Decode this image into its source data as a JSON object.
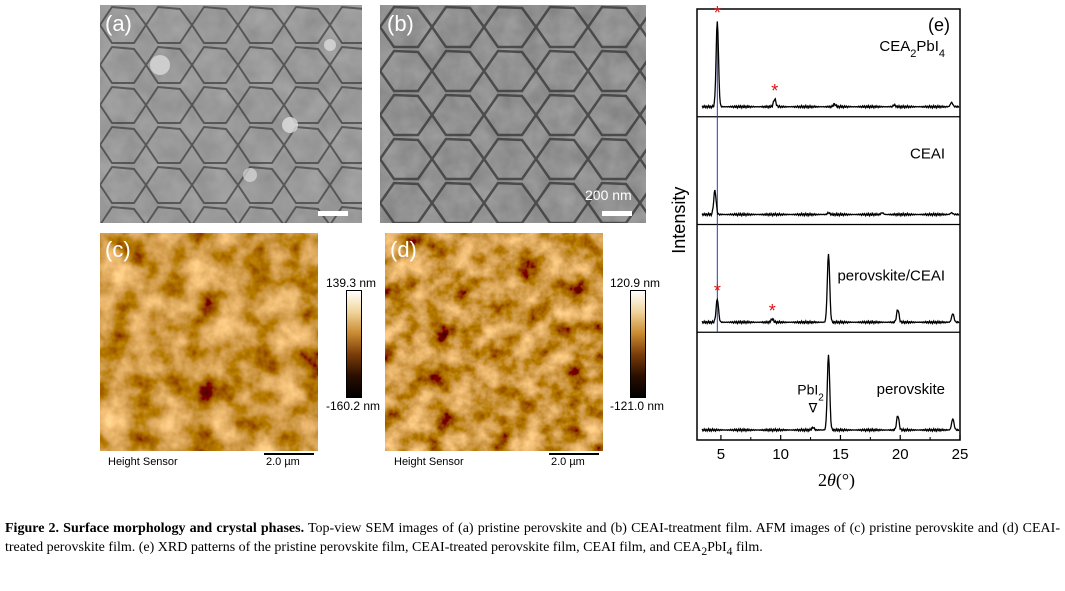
{
  "panels": {
    "a": {
      "label": "(a)"
    },
    "b": {
      "label": "(b)",
      "scalebar_text": "200 nm"
    },
    "c": {
      "label": "(c)",
      "colorbar_max": "139.3 nm",
      "colorbar_min": "-160.2 nm",
      "sensor": "Height Sensor",
      "scalebar_text": "2.0 µm"
    },
    "d": {
      "label": "(d)",
      "colorbar_max": "120.9 nm",
      "colorbar_min": "-121.0 nm",
      "sensor": "Height Sensor",
      "scalebar_text": "2.0 µm"
    }
  },
  "chart_data": {
    "type": "line",
    "panel_label": "(e)",
    "xlabel_prefix": "2",
    "xlabel_theta": "θ",
    "xlabel_unit": "(°)",
    "ylabel": "Intensity",
    "xlim": [
      3,
      25
    ],
    "xticks": [
      "5",
      "10",
      "15",
      "20",
      "25"
    ],
    "series": [
      {
        "name_main": "CEA",
        "name_sub": "2",
        "name_mid": "PbI",
        "name_sub2": "4",
        "peaks": [
          [
            4.7,
            1.0
          ],
          [
            9.5,
            0.09
          ],
          [
            14.5,
            0.03
          ],
          [
            19.5,
            0.02
          ],
          [
            24.3,
            0.05
          ]
        ],
        "stars": [
          4.7,
          9.5
        ]
      },
      {
        "name_main": "CEAI",
        "name_sub": "",
        "name_mid": "",
        "name_sub2": "",
        "peaks": [
          [
            4.5,
            0.28
          ],
          [
            14.0,
            0.02
          ],
          [
            18.5,
            0.02
          ],
          [
            24.3,
            0.02
          ]
        ],
        "stars": []
      },
      {
        "name_main": "perovskite/CEAI",
        "name_sub": "",
        "name_mid": "",
        "name_sub2": "",
        "peaks": [
          [
            4.7,
            0.27
          ],
          [
            9.3,
            0.04
          ],
          [
            14.0,
            0.8
          ],
          [
            19.8,
            0.15
          ],
          [
            24.4,
            0.1
          ]
        ],
        "stars": [
          4.7,
          9.3
        ]
      },
      {
        "name_main": "perovskite",
        "name_sub": "",
        "name_mid": "",
        "name_sub2": "",
        "peaks": [
          [
            12.7,
            0.03
          ],
          [
            14.0,
            0.88
          ],
          [
            19.8,
            0.17
          ],
          [
            24.4,
            0.13
          ]
        ],
        "stars": []
      }
    ],
    "annotations": {
      "pbi2": "PbI",
      "pbi2_sub": "2",
      "triangle": "∇",
      "star": "*"
    },
    "reference_line_x": 4.7
  },
  "caption": {
    "lead": "Figure 2. Surface morphology and crystal phases.",
    "body1": " Top-view SEM images of (a) pristine perovskite and (b) CEAI-treatment film. AFM images of (c) pristine perovskite and (d) CEAI-treated perovskite film. (e) XRD patterns of the pristine perovskite film, CEAI-treated perovskite film, CEAI film, and CEA",
    "sub1": "2",
    "body2": "PbI",
    "sub2": "4",
    "body3": " film."
  }
}
